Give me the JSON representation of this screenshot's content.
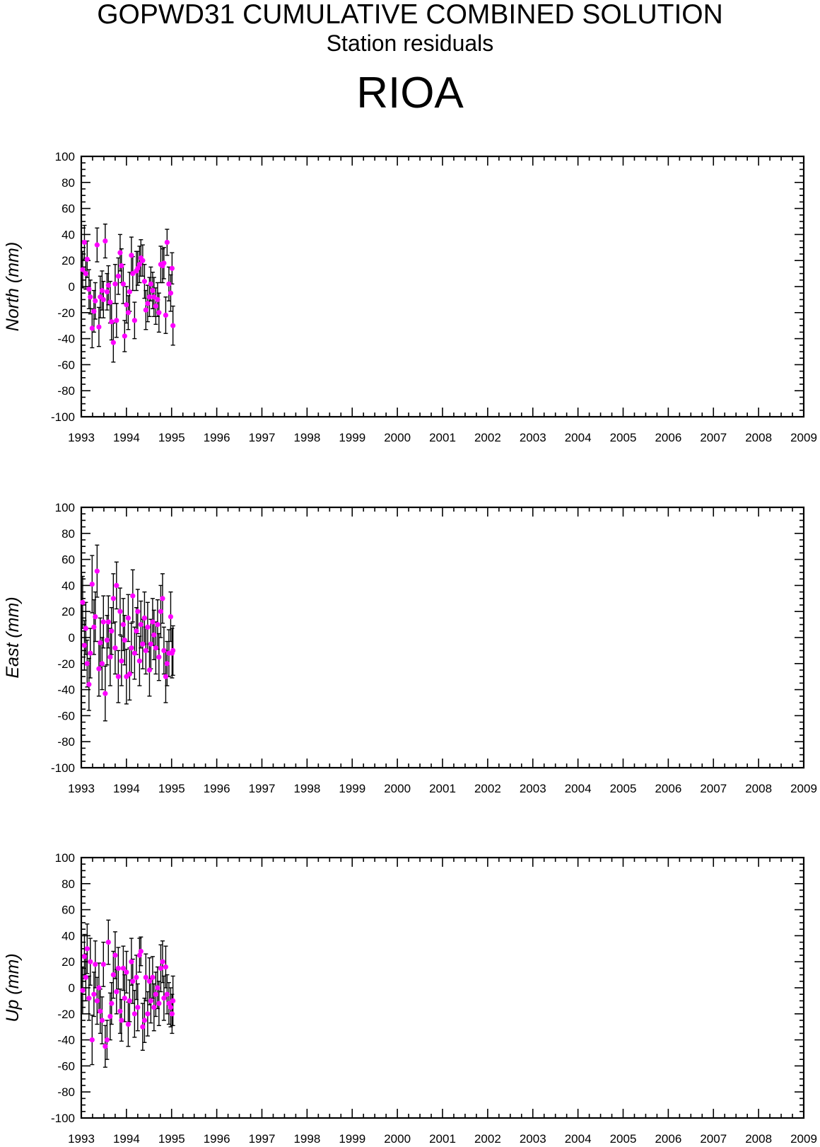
{
  "header": {
    "title": "GOPWD31 CUMULATIVE COMBINED SOLUTION",
    "subtitle": "Station residuals",
    "station": "RIOA"
  },
  "style": {
    "point_color": "#ff00ff",
    "errorbar_color": "#000000",
    "axis_color": "#000000"
  },
  "chart_data": [
    {
      "type": "scatter",
      "ylabel": "North (mm)",
      "xlim": [
        1993,
        2009
      ],
      "ylim": [
        -100,
        100
      ],
      "x_ticks": [
        "1993",
        "1994",
        "1995",
        "1996",
        "1997",
        "1998",
        "1999",
        "2000",
        "2001",
        "2002",
        "2003",
        "2004",
        "2005",
        "2006",
        "2007",
        "2008",
        "2009"
      ],
      "y_ticks": [
        "100",
        "80",
        "60",
        "40",
        "20",
        "0",
        "-20",
        "-40",
        "-60",
        "-80",
        "-100"
      ],
      "grid": false,
      "series": [
        {
          "x": [
            1993.03,
            1993.07,
            1993.1,
            1993.13,
            1993.17,
            1993.2,
            1993.24,
            1993.28,
            1993.31,
            1993.35,
            1993.39,
            1993.42,
            1993.46,
            1993.49,
            1993.53,
            1993.57,
            1993.6,
            1993.64,
            1993.67,
            1993.71,
            1993.75,
            1993.78,
            1993.82,
            1993.86,
            1993.89,
            1993.93,
            1993.96,
            1994.0,
            1994.04,
            1994.07,
            1994.11,
            1994.14,
            1994.18,
            1994.22,
            1994.25,
            1994.29,
            1994.32,
            1994.36,
            1994.4,
            1994.43,
            1994.47,
            1994.51,
            1994.54,
            1994.58,
            1994.61,
            1994.65,
            1994.69,
            1994.72,
            1994.76,
            1994.8,
            1994.83,
            1994.87,
            1994.9,
            1994.94,
            1994.98,
            1995.01,
            1995.03
          ],
          "y": [
            13,
            34,
            10,
            21,
            -2,
            -8,
            -32,
            -19,
            -11,
            32,
            -31,
            -8,
            -3,
            -10,
            35,
            -4,
            1,
            -12,
            -27,
            -43,
            2,
            -26,
            8,
            26,
            16,
            2,
            -38,
            -14,
            -20,
            -4,
            24,
            10,
            -26,
            12,
            14,
            17,
            22,
            20,
            4,
            -18,
            -13,
            -8,
            2,
            -3,
            -8,
            -15,
            -10,
            -20,
            17,
            16,
            18,
            -22,
            34,
            2,
            -5,
            14,
            -30
          ],
          "err": [
            14,
            13,
            12,
            14,
            15,
            13,
            15,
            16,
            14,
            13,
            15,
            16,
            15,
            14,
            13,
            14,
            15,
            16,
            14,
            15,
            15,
            13,
            14,
            14,
            13,
            15,
            12,
            14,
            13,
            15,
            14,
            13,
            14,
            15,
            13,
            14,
            14,
            12,
            13,
            15,
            14,
            15,
            13,
            14,
            15,
            14,
            13,
            15,
            14,
            13,
            12,
            14,
            10,
            13,
            14,
            12,
            15
          ]
        }
      ]
    },
    {
      "type": "scatter",
      "ylabel": "East (mm)",
      "xlim": [
        1993,
        2009
      ],
      "ylim": [
        -100,
        100
      ],
      "x_ticks": [
        "1993",
        "1994",
        "1995",
        "1996",
        "1997",
        "1998",
        "1999",
        "2000",
        "2001",
        "2002",
        "2003",
        "2004",
        "2005",
        "2006",
        "2007",
        "2008",
        "2009"
      ],
      "y_ticks": [
        "100",
        "80",
        "60",
        "40",
        "20",
        "0",
        "-20",
        "-40",
        "-60",
        "-80",
        "-100"
      ],
      "grid": false,
      "series": [
        {
          "x": [
            1993.03,
            1993.07,
            1993.1,
            1993.13,
            1993.17,
            1993.2,
            1993.24,
            1993.28,
            1993.31,
            1993.35,
            1993.39,
            1993.42,
            1993.46,
            1993.49,
            1993.53,
            1993.57,
            1993.6,
            1993.64,
            1993.67,
            1993.71,
            1993.75,
            1993.78,
            1993.82,
            1993.86,
            1993.89,
            1993.93,
            1993.96,
            1994.0,
            1994.04,
            1994.07,
            1994.11,
            1994.14,
            1994.18,
            1994.22,
            1994.25,
            1994.29,
            1994.32,
            1994.36,
            1994.4,
            1994.43,
            1994.47,
            1994.51,
            1994.54,
            1994.58,
            1994.61,
            1994.65,
            1994.69,
            1994.72,
            1994.76,
            1994.8,
            1994.83,
            1994.87,
            1994.9,
            1994.94,
            1994.98,
            1995.01,
            1995.03
          ],
          "y": [
            27,
            -6,
            7,
            -20,
            -36,
            -12,
            41,
            8,
            16,
            51,
            -24,
            -4,
            -20,
            12,
            -43,
            -2,
            12,
            -15,
            5,
            30,
            -8,
            40,
            -30,
            20,
            -18,
            10,
            -2,
            -30,
            15,
            -28,
            -8,
            32,
            -12,
            5,
            20,
            -18,
            10,
            -5,
            15,
            -10,
            8,
            -25,
            -5,
            12,
            2,
            -8,
            10,
            -15,
            20,
            30,
            -10,
            -30,
            -20,
            -12,
            16,
            -12,
            -10
          ],
          "err": [
            20,
            19,
            20,
            18,
            20,
            19,
            22,
            21,
            19,
            20,
            21,
            19,
            20,
            20,
            21,
            19,
            20,
            22,
            18,
            19,
            20,
            18,
            20,
            18,
            19,
            20,
            19,
            21,
            18,
            20,
            19,
            20,
            20,
            18,
            17,
            19,
            18,
            19,
            20,
            18,
            19,
            20,
            19,
            18,
            19,
            20,
            19,
            18,
            20,
            19,
            18,
            20,
            17,
            18,
            19,
            19,
            19
          ]
        }
      ]
    },
    {
      "type": "scatter",
      "ylabel": "Up (mm)",
      "xlim": [
        1993,
        2009
      ],
      "ylim": [
        -100,
        100
      ],
      "x_ticks": [
        "1993",
        "1994",
        "1995",
        "1996",
        "1997",
        "1998",
        "1999",
        "2000",
        "2001",
        "2002",
        "2003",
        "2004",
        "2005",
        "2006",
        "2007",
        "2008",
        "2009"
      ],
      "y_ticks": [
        "100",
        "80",
        "60",
        "40",
        "20",
        "0",
        "-20",
        "-40",
        "-60",
        "-80",
        "-100"
      ],
      "grid": false,
      "series": [
        {
          "x": [
            1993.03,
            1993.07,
            1993.1,
            1993.13,
            1993.17,
            1993.2,
            1993.24,
            1993.28,
            1993.31,
            1993.35,
            1993.39,
            1993.42,
            1993.46,
            1993.49,
            1993.53,
            1993.57,
            1993.6,
            1993.64,
            1993.67,
            1993.71,
            1993.75,
            1993.78,
            1993.82,
            1993.86,
            1993.89,
            1993.93,
            1993.96,
            1994.0,
            1994.04,
            1994.07,
            1994.11,
            1994.14,
            1994.18,
            1994.22,
            1994.25,
            1994.29,
            1994.32,
            1994.36,
            1994.4,
            1994.43,
            1994.47,
            1994.51,
            1994.54,
            1994.58,
            1994.61,
            1994.65,
            1994.69,
            1994.72,
            1994.76,
            1994.8,
            1994.83,
            1994.87,
            1994.9,
            1994.94,
            1994.98,
            1995.01,
            1995.03
          ],
          "y": [
            -2,
            24,
            8,
            30,
            -8,
            20,
            -40,
            -5,
            18,
            -10,
            0,
            -18,
            -25,
            18,
            -45,
            -40,
            35,
            -22,
            -12,
            10,
            25,
            -3,
            15,
            -18,
            -25,
            15,
            -8,
            12,
            -28,
            -10,
            20,
            5,
            -20,
            8,
            -15,
            25,
            28,
            -30,
            -25,
            8,
            -20,
            5,
            -10,
            8,
            -15,
            -5,
            0,
            -12,
            15,
            20,
            -8,
            16,
            -5,
            -12,
            -15,
            -20,
            -10
          ],
          "err": [
            18,
            17,
            18,
            19,
            17,
            18,
            19,
            17,
            18,
            18,
            19,
            17,
            18,
            17,
            16,
            15,
            17,
            18,
            16,
            18,
            18,
            17,
            16,
            17,
            16,
            17,
            18,
            16,
            17,
            16,
            18,
            17,
            18,
            17,
            18,
            13,
            11,
            18,
            17,
            18,
            17,
            18,
            17,
            16,
            18,
            17,
            16,
            17,
            18,
            16,
            17,
            16,
            15,
            16,
            15,
            15,
            19
          ]
        }
      ]
    }
  ]
}
